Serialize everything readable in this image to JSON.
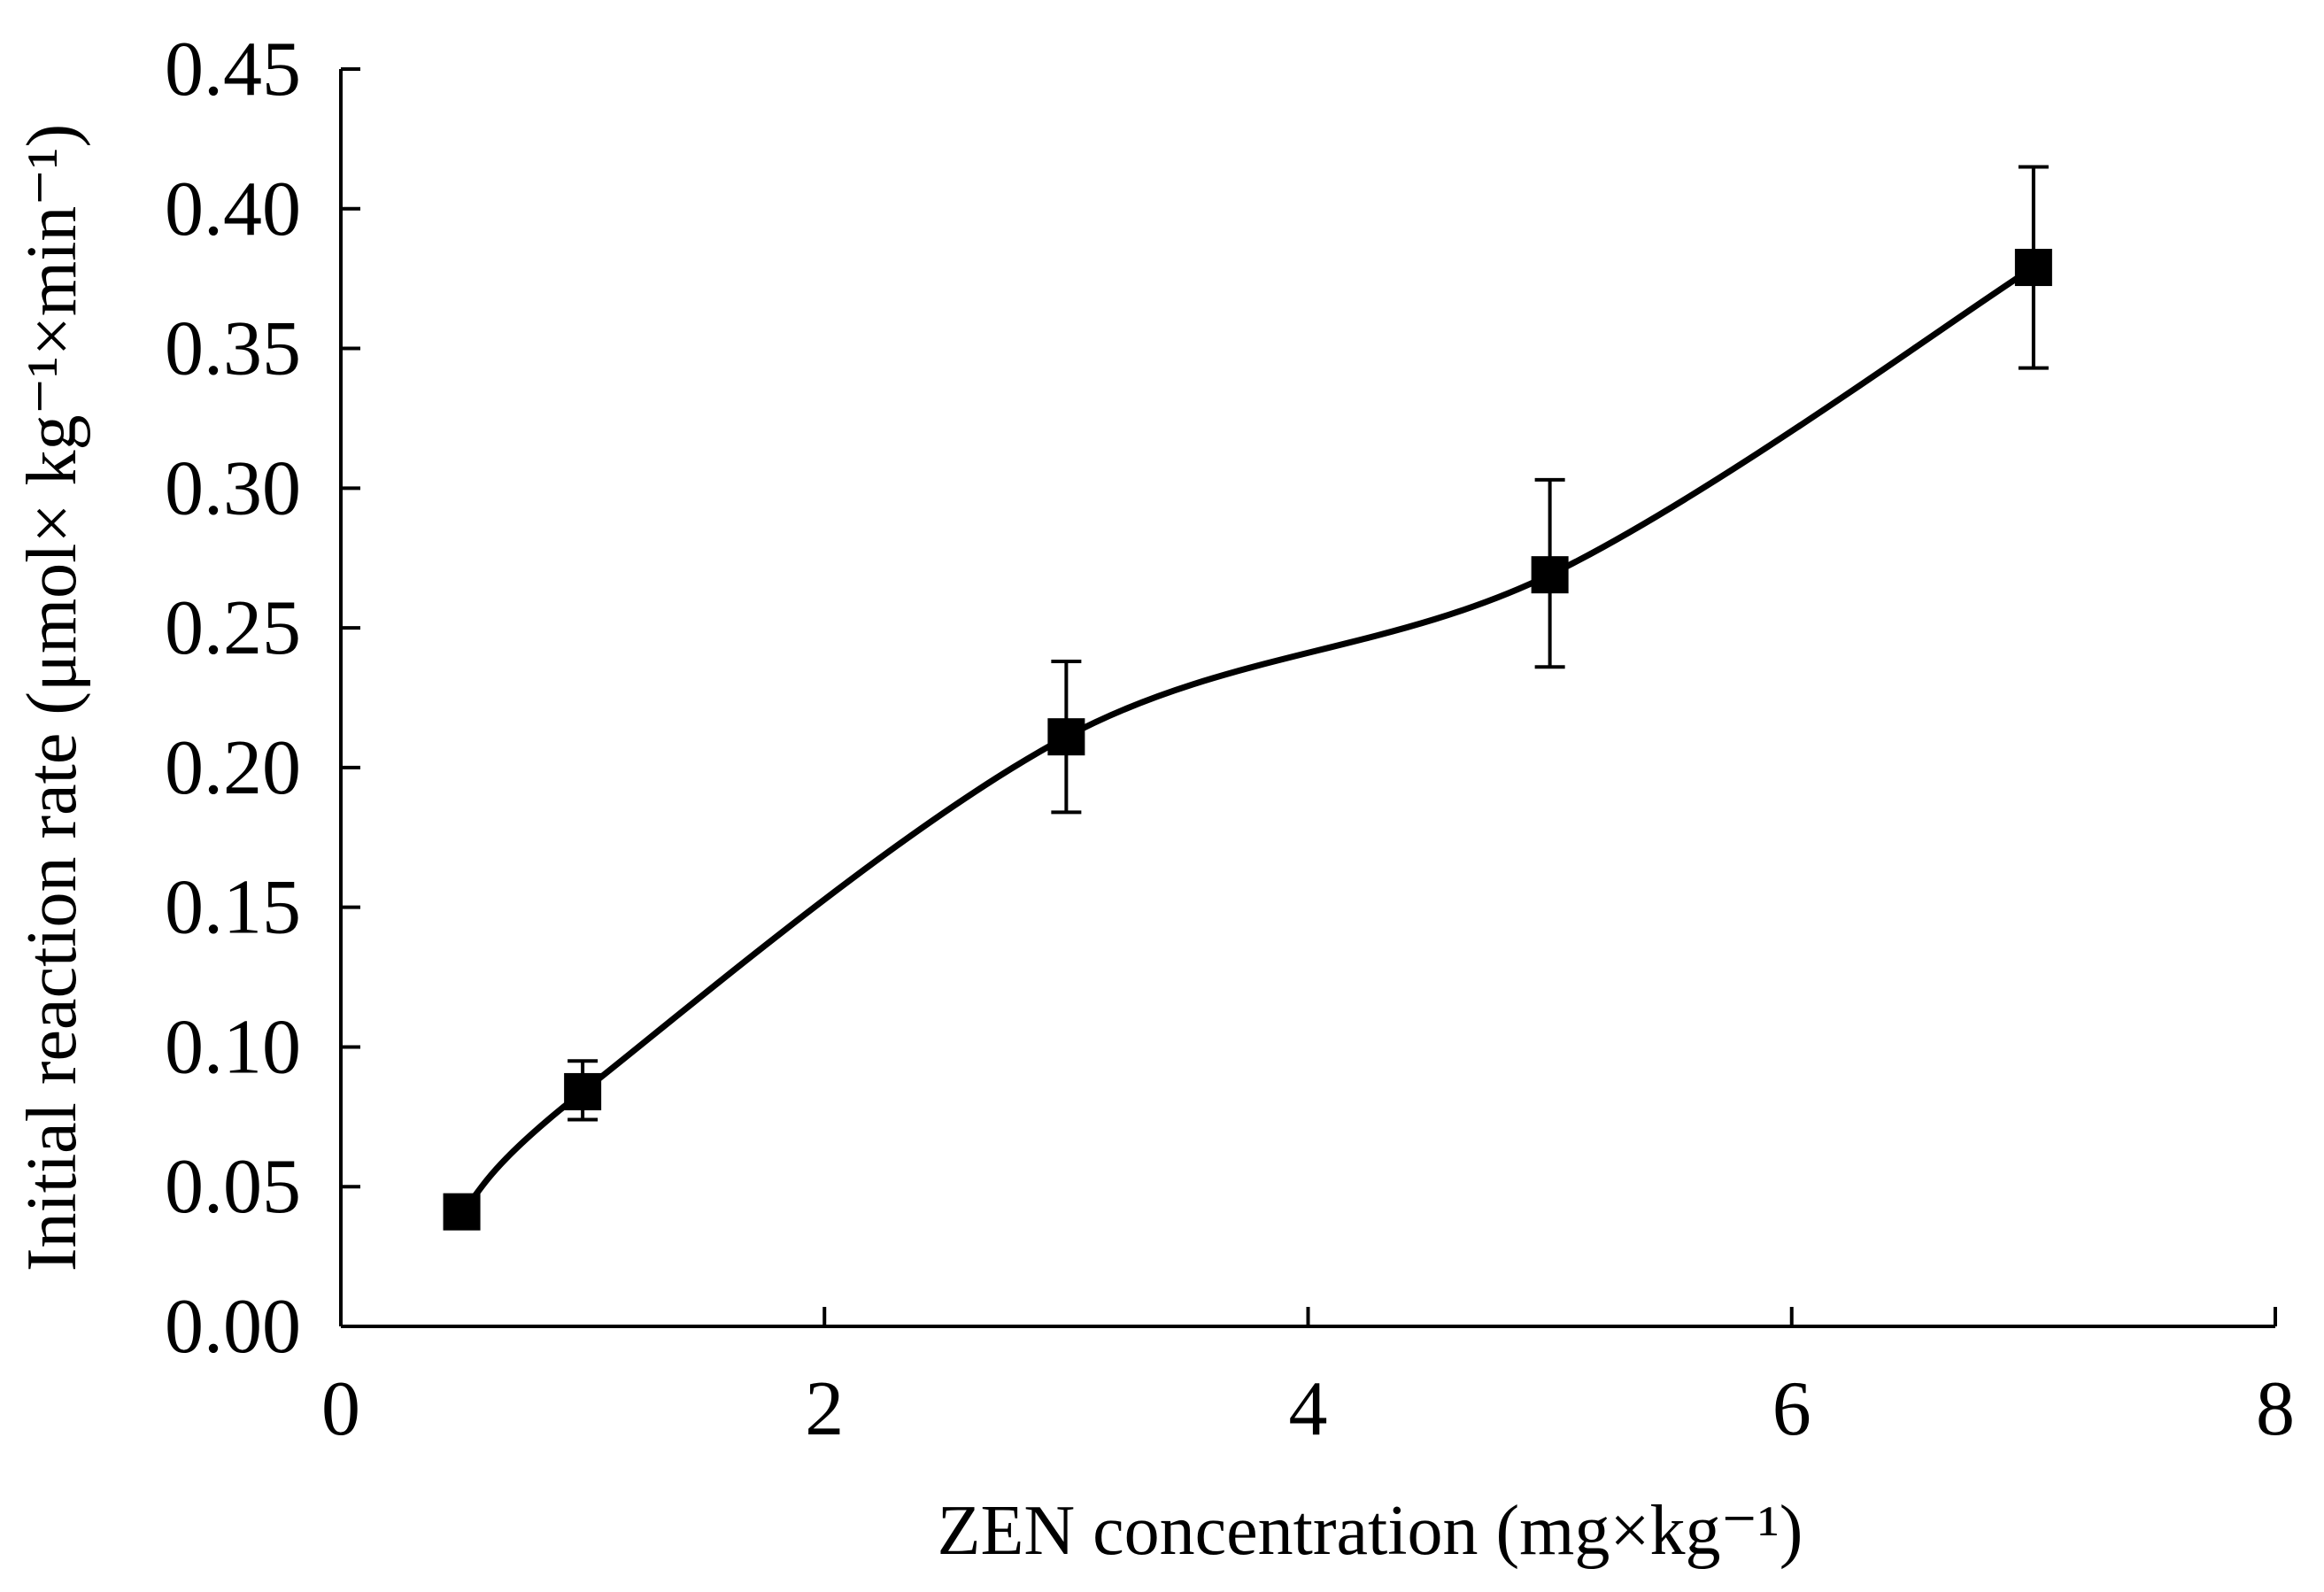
{
  "chart_data": {
    "type": "line",
    "title": "",
    "xlabel": "ZEN concentration (mg×kg⁻¹)",
    "ylabel": "Initial reaction rate (μmol× kg⁻¹×min⁻¹)",
    "xlim": [
      0,
      8
    ],
    "ylim": [
      0,
      0.45
    ],
    "x_ticks": [
      0,
      2,
      4,
      6,
      8
    ],
    "x_tick_labels": [
      "0",
      "2",
      "4",
      "6",
      "8"
    ],
    "y_ticks": [
      0,
      0.05,
      0.1,
      0.15,
      0.2,
      0.25,
      0.3,
      0.35,
      0.4,
      0.45
    ],
    "y_tick_labels": [
      "0.00",
      "0.05",
      "0.10",
      "0.15",
      "0.20",
      "0.25",
      "0.30",
      "0.35",
      "0.40",
      "0.45"
    ],
    "grid": false,
    "series": [
      {
        "name": "Initial reaction rate",
        "marker": "square",
        "smooth": true,
        "x": [
          0.5,
          1,
          3,
          5,
          7
        ],
        "y": [
          0.041,
          0.084,
          0.211,
          0.269,
          0.379
        ],
        "error_low": [
          0.041,
          0.074,
          0.184,
          0.236,
          0.343
        ],
        "error_high": [
          0.041,
          0.095,
          0.238,
          0.303,
          0.415
        ]
      }
    ],
    "color": "#000000"
  }
}
